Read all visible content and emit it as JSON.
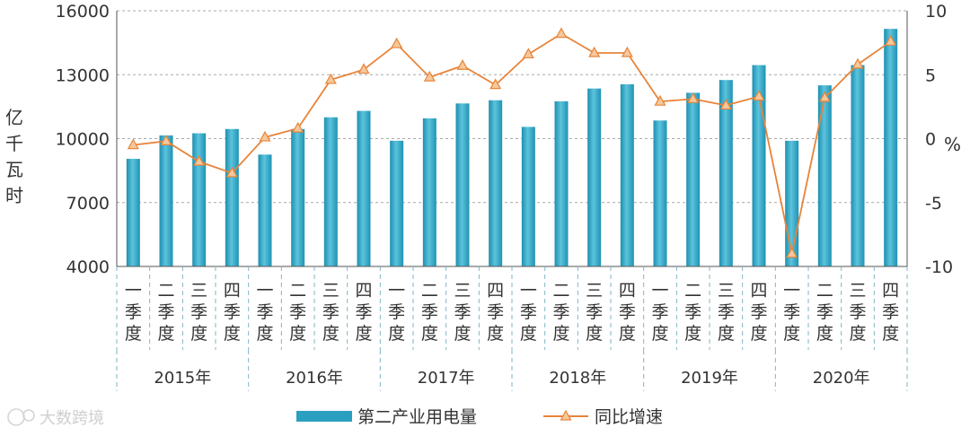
{
  "chart_data": {
    "type": "bar",
    "years": [
      "2015年",
      "2016年",
      "2017年",
      "2018年",
      "2019年",
      "2020年"
    ],
    "quarter_labels": [
      "一季度",
      "二季度",
      "三季度",
      "四季度"
    ],
    "series": [
      {
        "name": "第二产业用电量",
        "kind": "bar",
        "axis": "left",
        "color": "#2a9fbf",
        "values": [
          9050,
          10150,
          10250,
          10450,
          9250,
          10450,
          11000,
          11300,
          9900,
          10950,
          11650,
          11800,
          10550,
          11750,
          12350,
          12550,
          10850,
          12150,
          12750,
          13450,
          9900,
          12500,
          13450,
          15150
        ]
      },
      {
        "name": "同比增速",
        "kind": "line",
        "axis": "right",
        "color": "#e8843a",
        "values": [
          -0.5,
          -0.2,
          -1.8,
          -2.7,
          0.1,
          0.8,
          4.6,
          5.4,
          7.4,
          4.8,
          5.7,
          4.2,
          6.6,
          8.2,
          6.7,
          6.7,
          2.9,
          3.1,
          2.6,
          3.3,
          -9.0,
          3.2,
          5.8,
          7.6
        ]
      }
    ],
    "y_left": {
      "label": "亿千瓦时",
      "ticks": [
        4000,
        7000,
        10000,
        13000,
        16000
      ],
      "lim": [
        4000,
        16000
      ]
    },
    "y_right": {
      "label": "%",
      "ticks": [
        10,
        5,
        0,
        -5,
        -10
      ],
      "lim": [
        -10,
        10
      ]
    },
    "grid": true,
    "legend_position": "bottom"
  },
  "watermark": "大数跨境"
}
